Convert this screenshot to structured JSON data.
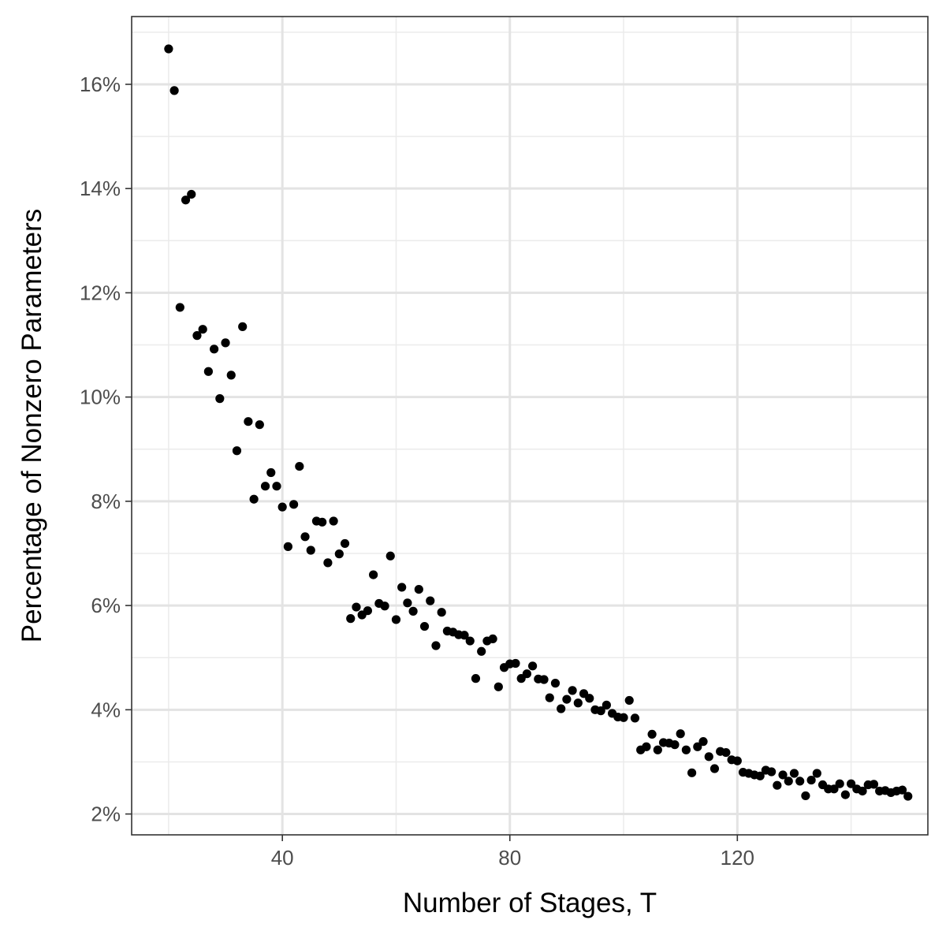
{
  "chart_data": {
    "type": "scatter",
    "title": "",
    "xlabel": "Number of Stages, T",
    "ylabel": "Percentage of Nonzero Parameters",
    "xlim": [
      13.5,
      153.5
    ],
    "ylim": [
      1.6,
      17.3
    ],
    "x_ticks": [
      40,
      80,
      120
    ],
    "x_tick_labels": [
      "40",
      "80",
      "120"
    ],
    "x_minor_ticks": [
      20,
      60,
      100,
      140
    ],
    "y_ticks": [
      2,
      4,
      6,
      8,
      10,
      12,
      14,
      16
    ],
    "y_tick_labels": [
      "2%",
      "4%",
      "6%",
      "8%",
      "10%",
      "12%",
      "14%",
      "16%"
    ],
    "y_minor_ticks": [
      3,
      5,
      7,
      9,
      11,
      13,
      15,
      17
    ],
    "grid": true,
    "legend": "none",
    "point_color": "#000000",
    "series": [
      {
        "x": [
          20,
          21,
          22,
          23,
          24,
          25,
          26,
          27,
          28,
          29,
          30,
          31,
          32,
          33,
          34,
          35,
          36,
          37,
          38,
          39,
          40,
          41,
          42,
          43,
          44,
          45,
          46,
          47,
          48,
          49,
          50,
          51,
          52,
          53,
          54,
          55,
          56,
          57,
          58,
          59,
          60,
          61,
          62,
          63,
          64,
          65,
          66,
          67,
          68,
          69,
          70,
          71,
          72,
          73,
          74,
          75,
          76,
          77,
          78,
          79,
          80,
          81,
          82,
          83,
          84,
          85,
          86,
          87,
          88,
          89,
          90,
          91,
          92,
          93,
          94,
          95,
          96,
          97,
          98,
          99,
          100,
          101,
          102,
          103,
          104,
          105,
          106,
          107,
          108,
          109,
          110,
          111,
          112,
          113,
          114,
          115,
          116,
          117,
          118,
          119,
          120,
          121,
          122,
          123,
          124,
          125,
          126,
          127,
          128,
          129,
          130,
          131,
          132,
          133,
          134,
          135,
          136,
          137,
          138,
          139,
          140,
          141,
          142,
          143,
          144,
          145,
          146,
          147,
          148,
          149,
          150
        ],
        "y": [
          16.68,
          15.88,
          11.72,
          13.78,
          13.89,
          11.18,
          11.3,
          10.49,
          10.92,
          9.97,
          11.04,
          10.42,
          8.97,
          11.35,
          9.53,
          8.04,
          9.47,
          8.29,
          8.55,
          8.29,
          7.89,
          7.13,
          7.94,
          8.67,
          7.32,
          7.06,
          7.62,
          7.6,
          6.82,
          7.62,
          6.99,
          7.19,
          5.75,
          5.97,
          5.82,
          5.9,
          6.59,
          6.04,
          5.99,
          6.95,
          5.73,
          6.35,
          6.05,
          5.89,
          6.31,
          5.6,
          6.09,
          5.23,
          5.87,
          5.51,
          5.49,
          5.44,
          5.43,
          5.32,
          4.6,
          5.12,
          5.32,
          5.36,
          4.44,
          4.81,
          4.88,
          4.89,
          4.6,
          4.69,
          4.84,
          4.59,
          4.58,
          4.23,
          4.51,
          4.02,
          4.2,
          4.37,
          4.13,
          4.31,
          4.22,
          4.0,
          3.98,
          4.09,
          3.93,
          3.86,
          3.85,
          4.18,
          3.84,
          3.23,
          3.29,
          3.53,
          3.23,
          3.37,
          3.36,
          3.33,
          3.54,
          3.23,
          2.79,
          3.29,
          3.39,
          3.1,
          2.87,
          3.2,
          3.18,
          3.04,
          3.02,
          2.8,
          2.78,
          2.75,
          2.73,
          2.84,
          2.81,
          2.55,
          2.75,
          2.63,
          2.78,
          2.63,
          2.35,
          2.65,
          2.78,
          2.56,
          2.48,
          2.48,
          2.58,
          2.37,
          2.58,
          2.48,
          2.44,
          2.56,
          2.57,
          2.44,
          2.45,
          2.41,
          2.44,
          2.46,
          2.34
        ]
      }
    ]
  }
}
